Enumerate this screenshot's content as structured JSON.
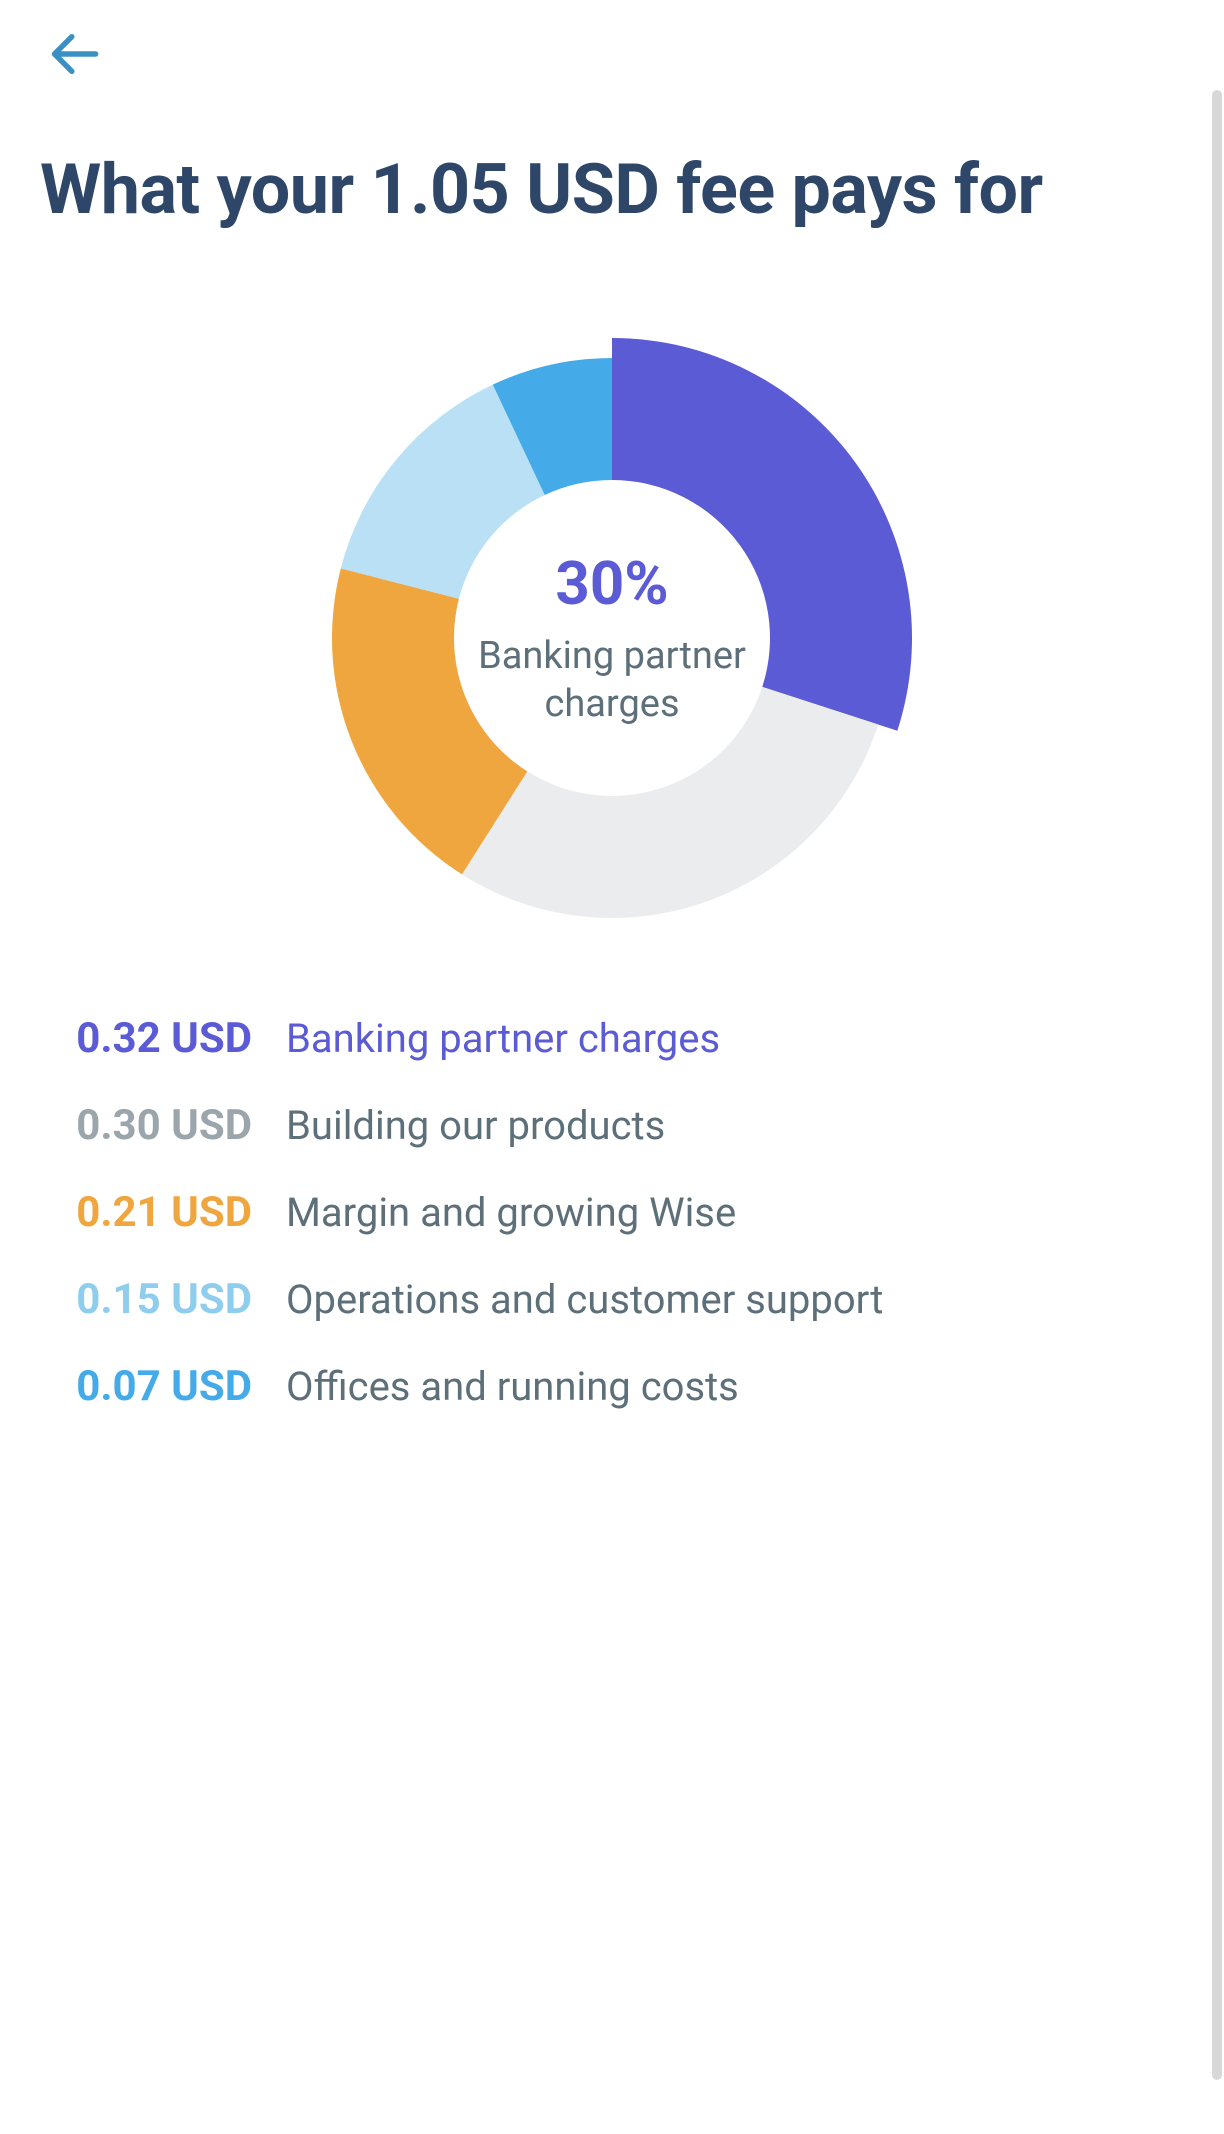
{
  "colors": {
    "back_icon": "#3a90c4",
    "title": "#2e4668",
    "background": "#ffffff",
    "center_label": "#5d7079",
    "scrollbar": "#d8d8d8"
  },
  "header": {
    "title": "What your 1.05 USD fee pays for"
  },
  "chart": {
    "type": "donut",
    "highlighted_index": 0,
    "center_percent": "30%",
    "center_label": "Banking partner charges",
    "outer_radius": 280,
    "inner_radius": 158,
    "highlight_extra_radius": 20,
    "start_angle_deg": 0,
    "segments": [
      {
        "value": 30,
        "color": "#5b5bd6"
      },
      {
        "value": 29,
        "color": "#ebecee"
      },
      {
        "value": 20,
        "color": "#f0a63f"
      },
      {
        "value": 14,
        "color": "#bae0f5"
      },
      {
        "value": 7,
        "color": "#45aae8"
      }
    ]
  },
  "legend": {
    "items": [
      {
        "amount": "0.32 USD",
        "label": "Banking partner charges",
        "amount_color": "#5b5bd6",
        "label_color": "#5b5bd6"
      },
      {
        "amount": "0.30 USD",
        "label": "Building our products",
        "amount_color": "#9aa5ac",
        "label_color": "#5d7079"
      },
      {
        "amount": "0.21 USD",
        "label": "Margin and growing Wise",
        "amount_color": "#f0a63f",
        "label_color": "#5d7079"
      },
      {
        "amount": "0.15 USD",
        "label": "Operations and customer support",
        "amount_color": "#8fcdef",
        "label_color": "#5d7079"
      },
      {
        "amount": "0.07 USD",
        "label": "Offices and running costs",
        "amount_color": "#45aae8",
        "label_color": "#5d7079"
      }
    ]
  }
}
